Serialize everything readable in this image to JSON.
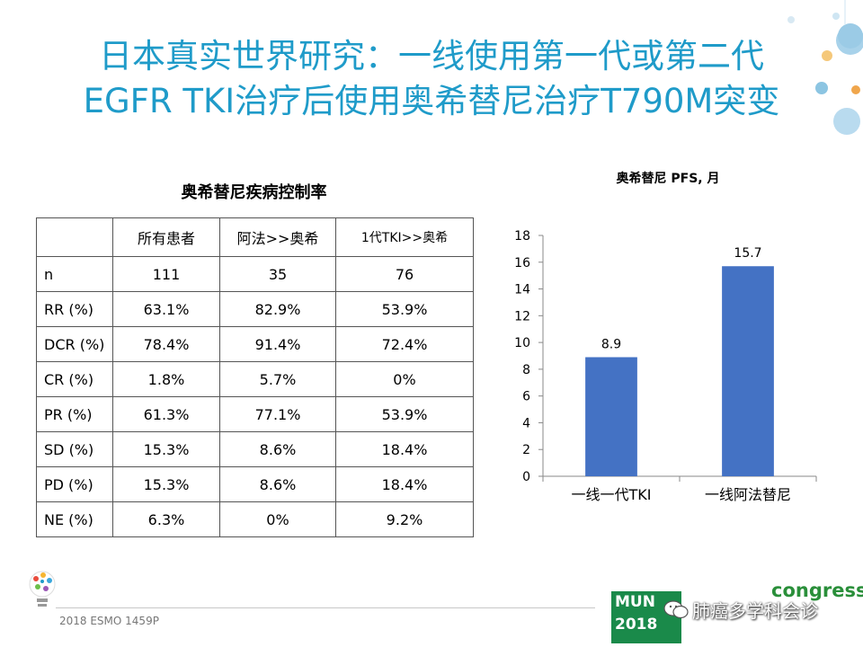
{
  "title": {
    "line1": "日本真实世界研究：一线使用第一代或第二代",
    "line2": "EGFR TKI治疗后使用奥希替尼治疗T790M突变"
  },
  "table": {
    "title": "奥希替尼疾病控制率",
    "headers": [
      "",
      "所有患者",
      "阿法>>奥希",
      "1代TKI>>奥希"
    ],
    "rows": [
      [
        "n",
        "111",
        "35",
        "76"
      ],
      [
        "RR (%)",
        "63.1%",
        "82.9%",
        "53.9%"
      ],
      [
        "DCR (%)",
        "78.4%",
        "91.4%",
        "72.4%"
      ],
      [
        "CR (%)",
        "1.8%",
        "5.7%",
        "0%"
      ],
      [
        "PR (%)",
        "61.3%",
        "77.1%",
        "53.9%"
      ],
      [
        "SD (%)",
        "15.3%",
        "8.6%",
        "18.4%"
      ],
      [
        "PD (%)",
        "15.3%",
        "8.6%",
        "18.4%"
      ],
      [
        "NE (%)",
        "6.3%",
        "0%",
        "9.2%"
      ]
    ]
  },
  "chart_data": {
    "type": "bar",
    "title": "奥希替尼 PFS, 月",
    "categories": [
      "一线一代TKI",
      "一线阿法替尼"
    ],
    "values": [
      8.9,
      15.7
    ],
    "data_labels": [
      "8.9",
      "15.7"
    ],
    "ylim": [
      0,
      18
    ],
    "yticks": [
      0,
      2,
      4,
      6,
      8,
      10,
      12,
      14,
      16,
      18
    ],
    "bar_color": "#4472c4",
    "grid": false,
    "legend": "none"
  },
  "footer": {
    "citation": "2018 ESMO 1459P",
    "watermark": "肺癌多学科会诊",
    "congress": "congress",
    "logo_text1": "MUN",
    "logo_text2": "2018"
  },
  "colors": {
    "title": "#1f9bc9",
    "bar": "#4472c4"
  }
}
